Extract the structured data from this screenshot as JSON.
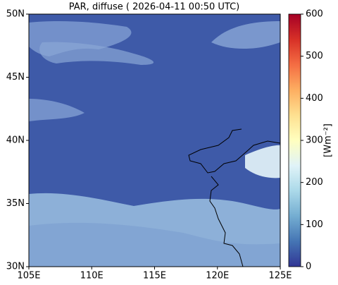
{
  "chart_data": {
    "type": "map",
    "title": "PAR, diffuse ( 2026-04-11 00:50 UTC)",
    "xlim": [
      105,
      125
    ],
    "xticks": [
      {
        "value": 105,
        "label": "105E"
      },
      {
        "value": 110,
        "label": "110E"
      },
      {
        "value": 115,
        "label": "115E"
      },
      {
        "value": 120,
        "label": "120E"
      },
      {
        "value": 125,
        "label": "125E"
      }
    ],
    "ylim": [
      30,
      50
    ],
    "yticks": [
      {
        "value": 30,
        "label": "30N"
      },
      {
        "value": 35,
        "label": "35N"
      },
      {
        "value": 40,
        "label": "40N"
      },
      {
        "value": 45,
        "label": "45N"
      },
      {
        "value": 50,
        "label": "50N"
      }
    ],
    "colorbar": {
      "label": "[Wm⁻²]",
      "lim": [
        0,
        600
      ],
      "ticks": [
        0,
        100,
        200,
        300,
        400,
        500,
        600
      ]
    }
  }
}
